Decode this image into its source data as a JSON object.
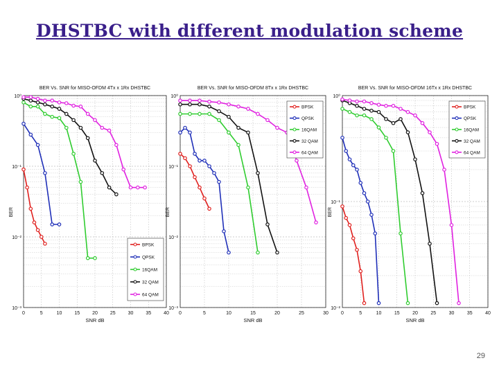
{
  "slide": {
    "title": "DHSTBC with different modulation scheme",
    "page_number": "29"
  },
  "chart_data": [
    {
      "type": "line",
      "title": "BER Vs. SNR for MISO-OFDM 4Tx x 1Rx DHSTBC",
      "xlabel": "SNR dB",
      "ylabel": "BER",
      "xlim": [
        0,
        40
      ],
      "ylim": [
        0.001,
        1
      ],
      "yscale": "log",
      "grid": true,
      "legend_position": "bottom-right",
      "x_ticks": [
        0,
        5,
        10,
        15,
        20,
        25,
        30,
        35,
        40
      ],
      "y_ticks": [
        0.001,
        0.01,
        0.1,
        1
      ],
      "y_tick_labels": [
        "10⁻³",
        "10⁻²",
        "10⁻¹",
        "10⁰"
      ],
      "series": [
        {
          "name": "BPSK",
          "color": "#e0201e",
          "x": [
            0,
            1,
            2,
            3,
            4,
            5,
            6
          ],
          "y": [
            0.09,
            0.05,
            0.025,
            0.016,
            0.0125,
            0.01,
            0.008
          ]
        },
        {
          "name": "QPSK",
          "color": "#1f2fb8",
          "x": [
            0,
            2,
            4,
            6,
            8,
            10
          ],
          "y": [
            0.4,
            0.28,
            0.2,
            0.08,
            0.015,
            0.015
          ]
        },
        {
          "name": "16QAM",
          "color": "#2fcc2f",
          "x": [
            0,
            2,
            4,
            6,
            8,
            10,
            12,
            14,
            16,
            18,
            20
          ],
          "y": [
            0.8,
            0.7,
            0.7,
            0.55,
            0.5,
            0.48,
            0.35,
            0.15,
            0.06,
            0.005,
            0.005
          ]
        },
        {
          "name": "32 QAM",
          "color": "#111111",
          "x": [
            0,
            2,
            4,
            6,
            8,
            10,
            12,
            14,
            16,
            18,
            20,
            22,
            24,
            26
          ],
          "y": [
            0.9,
            0.85,
            0.8,
            0.75,
            0.7,
            0.65,
            0.55,
            0.45,
            0.35,
            0.25,
            0.12,
            0.08,
            0.05,
            0.04
          ]
        },
        {
          "name": "64 QAM",
          "color": "#e020e0",
          "x": [
            0,
            2,
            4,
            6,
            8,
            10,
            12,
            14,
            16,
            18,
            20,
            22,
            24,
            26,
            28,
            30,
            32,
            34
          ],
          "y": [
            0.95,
            0.95,
            0.9,
            0.85,
            0.85,
            0.8,
            0.78,
            0.72,
            0.7,
            0.55,
            0.45,
            0.35,
            0.32,
            0.2,
            0.09,
            0.05,
            0.05,
            0.05
          ]
        }
      ]
    },
    {
      "type": "line",
      "title": "BER Vs. SNR for MISO-OFDM 8Tx x 1Rx DHSTBC",
      "xlabel": "SNR dB",
      "ylabel": "BER",
      "xlim": [
        0,
        30
      ],
      "ylim": [
        0.001,
        1
      ],
      "yscale": "log",
      "grid": true,
      "legend_position": "top-right",
      "x_ticks": [
        0,
        5,
        10,
        15,
        20,
        25,
        30
      ],
      "y_ticks": [
        0.001,
        0.01,
        0.1,
        1
      ],
      "y_tick_labels": [
        "10⁻³",
        "10⁻²",
        "10⁻¹",
        "10⁰"
      ],
      "series": [
        {
          "name": "BPSK",
          "color": "#e0201e",
          "x": [
            0,
            1,
            2,
            3,
            4,
            5,
            6
          ],
          "y": [
            0.15,
            0.13,
            0.1,
            0.07,
            0.05,
            0.035,
            0.025
          ]
        },
        {
          "name": "QPSK",
          "color": "#1f2fb8",
          "x": [
            0,
            1,
            2,
            3,
            4,
            5,
            6,
            7,
            8,
            9,
            10
          ],
          "y": [
            0.3,
            0.35,
            0.3,
            0.15,
            0.12,
            0.12,
            0.1,
            0.08,
            0.06,
            0.012,
            0.006
          ]
        },
        {
          "name": "16QAM",
          "color": "#2fcc2f",
          "x": [
            0,
            2,
            4,
            6,
            8,
            10,
            12,
            14,
            16
          ],
          "y": [
            0.55,
            0.55,
            0.55,
            0.55,
            0.45,
            0.3,
            0.2,
            0.05,
            0.006
          ]
        },
        {
          "name": "32 QAM",
          "color": "#111111",
          "x": [
            0,
            2,
            4,
            6,
            8,
            10,
            12,
            14,
            16,
            18,
            20
          ],
          "y": [
            0.75,
            0.75,
            0.75,
            0.7,
            0.6,
            0.5,
            0.35,
            0.3,
            0.08,
            0.015,
            0.006
          ]
        },
        {
          "name": "64 QAM",
          "color": "#e020e0",
          "x": [
            0,
            2,
            4,
            6,
            8,
            10,
            12,
            14,
            16,
            18,
            20,
            22,
            24,
            26,
            28
          ],
          "y": [
            0.85,
            0.85,
            0.85,
            0.82,
            0.8,
            0.75,
            0.7,
            0.65,
            0.55,
            0.45,
            0.35,
            0.3,
            0.12,
            0.05,
            0.016
          ]
        }
      ]
    },
    {
      "type": "line",
      "title": "BER Vs. SNR for MISO-OFDM 16Tx x 1Rx DHSTBC",
      "xlabel": "SNR dB",
      "ylabel": "BER",
      "xlim": [
        0,
        40
      ],
      "ylim": [
        0.01,
        1
      ],
      "yscale": "log",
      "grid": true,
      "legend_position": "top-right",
      "x_ticks": [
        0,
        5,
        10,
        15,
        20,
        25,
        30,
        35,
        40
      ],
      "y_ticks": [
        0.01,
        0.1,
        1
      ],
      "y_tick_labels": [
        "10⁻²",
        "10⁻¹",
        "10⁰"
      ],
      "series": [
        {
          "name": "BPSK",
          "color": "#e0201e",
          "x": [
            0,
            1,
            2,
            3,
            4,
            5,
            6
          ],
          "y": [
            0.09,
            0.07,
            0.06,
            0.045,
            0.035,
            0.022,
            0.011
          ]
        },
        {
          "name": "QPSK",
          "color": "#1f2fb8",
          "x": [
            0,
            1,
            2,
            3,
            4,
            5,
            6,
            7,
            8,
            9,
            10
          ],
          "y": [
            0.4,
            0.3,
            0.25,
            0.22,
            0.2,
            0.15,
            0.12,
            0.1,
            0.075,
            0.05,
            0.011
          ]
        },
        {
          "name": "16QAM",
          "color": "#2fcc2f",
          "x": [
            0,
            2,
            4,
            6,
            8,
            10,
            12,
            14,
            16,
            18
          ],
          "y": [
            0.75,
            0.7,
            0.65,
            0.65,
            0.6,
            0.5,
            0.4,
            0.3,
            0.05,
            0.011
          ]
        },
        {
          "name": "32 QAM",
          "color": "#111111",
          "x": [
            0,
            2,
            4,
            6,
            8,
            10,
            12,
            14,
            16,
            18,
            20,
            22,
            24,
            26
          ],
          "y": [
            0.9,
            0.85,
            0.8,
            0.75,
            0.72,
            0.7,
            0.6,
            0.55,
            0.6,
            0.45,
            0.25,
            0.12,
            0.04,
            0.011
          ]
        },
        {
          "name": "64 QAM",
          "color": "#e020e0",
          "x": [
            0,
            2,
            4,
            6,
            8,
            10,
            12,
            14,
            16,
            18,
            20,
            22,
            24,
            26,
            28,
            30,
            32
          ],
          "y": [
            0.92,
            0.9,
            0.88,
            0.88,
            0.85,
            0.82,
            0.8,
            0.8,
            0.75,
            0.7,
            0.65,
            0.55,
            0.45,
            0.35,
            0.2,
            0.06,
            0.011
          ]
        }
      ]
    }
  ]
}
